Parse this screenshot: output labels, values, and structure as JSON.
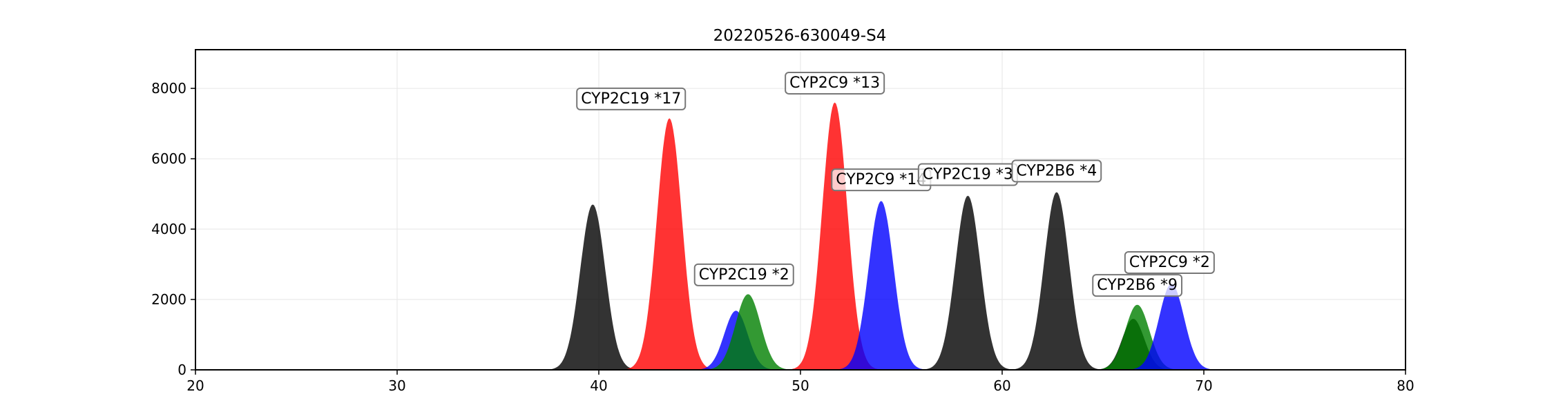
{
  "chart_data": {
    "type": "area",
    "title": "20220526-630049-S4",
    "xlabel": "",
    "ylabel": "",
    "xlim": [
      20,
      80
    ],
    "ylim": [
      0,
      9100
    ],
    "xticks": [
      20,
      30,
      40,
      50,
      60,
      70,
      80
    ],
    "yticks": [
      0,
      2000,
      4000,
      6000,
      8000
    ],
    "grid": true,
    "colors": {
      "black": "#000000",
      "red": "#ff0000",
      "blue": "#0000ff",
      "green": "#008000"
    },
    "peaks": [
      {
        "color": "black",
        "center": 39.7,
        "height": 4700,
        "sigma": 0.62
      },
      {
        "color": "red",
        "center": 43.5,
        "height": 7150,
        "sigma": 0.62
      },
      {
        "color": "blue",
        "center": 46.8,
        "height": 1680,
        "sigma": 0.58
      },
      {
        "color": "green",
        "center": 47.4,
        "height": 2150,
        "sigma": 0.62
      },
      {
        "color": "red",
        "center": 51.7,
        "height": 7600,
        "sigma": 0.62
      },
      {
        "color": "blue",
        "center": 54.0,
        "height": 4800,
        "sigma": 0.62
      },
      {
        "color": "black",
        "center": 58.3,
        "height": 4950,
        "sigma": 0.62
      },
      {
        "color": "black",
        "center": 62.7,
        "height": 5050,
        "sigma": 0.62
      },
      {
        "color": "black",
        "center": 66.5,
        "height": 1450,
        "sigma": 0.55
      },
      {
        "color": "green",
        "center": 66.7,
        "height": 1850,
        "sigma": 0.6
      },
      {
        "color": "blue",
        "center": 68.4,
        "height": 2450,
        "sigma": 0.62
      }
    ],
    "annotations": [
      {
        "text": "CYP2C19 *17",
        "x": 41.6,
        "y": 7700
      },
      {
        "text": "CYP2C9 *13",
        "x": 51.7,
        "y": 8150
      },
      {
        "text": "CYP2C9 *14",
        "x": 54.0,
        "y": 5400
      },
      {
        "text": "CYP2C19 *3",
        "x": 58.3,
        "y": 5550
      },
      {
        "text": "CYP2B6 *4",
        "x": 62.7,
        "y": 5650
      },
      {
        "text": "CYP2C19 *2",
        "x": 47.2,
        "y": 2700
      },
      {
        "text": "CYP2C9 *2",
        "x": 68.3,
        "y": 3050
      },
      {
        "text": "CYP2B6 *9",
        "x": 66.7,
        "y": 2400
      }
    ]
  }
}
